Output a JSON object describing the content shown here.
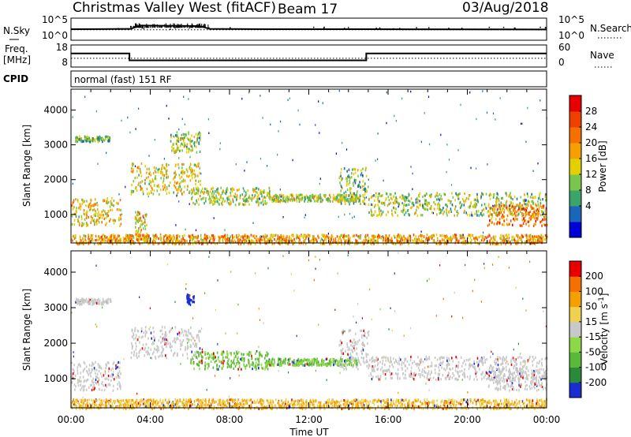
{
  "header": {
    "title": "Christmas Valley West (fitACF)",
    "beam": "Beam 17",
    "date": "03/Aug/2018"
  },
  "chart_data": [
    {
      "type": "line",
      "panel": "noise",
      "left_label": "N.Sky",
      "right_label": "N.Search",
      "left_ticks": [
        "10^5",
        "10^0"
      ],
      "right_ticks": [
        "10^5",
        "10^0"
      ],
      "x_range_hours": [
        0,
        24
      ],
      "series": [
        {
          "name": "N.Sky",
          "style": "solid",
          "x": [
            0,
            3,
            3.5,
            6.5,
            7,
            10,
            12,
            15,
            24
          ],
          "y": [
            2.5,
            2.6,
            3.8,
            3.6,
            2.6,
            2.5,
            2.5,
            2.5,
            2.4
          ]
        },
        {
          "name": "N.Search",
          "style": "dotted",
          "x": [
            0,
            24
          ],
          "y": [
            2.3,
            2.3
          ]
        }
      ]
    },
    {
      "type": "line",
      "panel": "frequency",
      "left_label": "Freq. [MHz]",
      "right_label": "Nave",
      "left_ticks": [
        "18",
        "8"
      ],
      "right_ticks": [
        "60",
        "0"
      ],
      "x_range_hours": [
        0,
        24
      ],
      "series": [
        {
          "name": "Freq.",
          "style": "solid",
          "x": [
            0,
            2.95,
            2.95,
            14.9,
            14.9,
            24
          ],
          "y": [
            14.5,
            14.5,
            10.5,
            10.5,
            14.5,
            14.5
          ]
        },
        {
          "name": "Nave",
          "style": "dotted",
          "x": [
            0,
            24
          ],
          "y": [
            22,
            22
          ]
        }
      ]
    },
    {
      "type": "heatmap",
      "panel": "cpid",
      "label": "CPID",
      "text": "normal (fast) 151 RF"
    },
    {
      "type": "heatmap",
      "panel": "power",
      "ylabel": "Slant Range [km]",
      "ylim": [
        180,
        4600
      ],
      "yticks": [
        1000,
        2000,
        3000,
        4000
      ],
      "colorbar_label": "Power [dB]",
      "colorbar_ticks": [
        "28",
        "24",
        "20",
        "16",
        "12",
        "8",
        "4"
      ],
      "colorbar_colors": [
        "#0000d8",
        "#1a66b8",
        "#3aa46a",
        "#7ac64c",
        "#e3d000",
        "#f5a000",
        "#f57000",
        "#f04000",
        "#e80000"
      ],
      "echo_regions": [
        {
          "t": [
            0.2,
            2.0
          ],
          "r": [
            3120,
            3280
          ],
          "level": 0.35
        },
        {
          "t": [
            0.0,
            2.5
          ],
          "r": [
            700,
            1500
          ],
          "level": 0.55
        },
        {
          "t": [
            3.0,
            6.5
          ],
          "r": [
            1600,
            2500
          ],
          "level": 0.5
        },
        {
          "t": [
            5.0,
            6.5
          ],
          "r": [
            2800,
            3400
          ],
          "level": 0.4
        },
        {
          "t": [
            6.0,
            10.0
          ],
          "r": [
            1300,
            1800
          ],
          "level": 0.45
        },
        {
          "t": [
            10.0,
            14.5
          ],
          "r": [
            1400,
            1600
          ],
          "level": 0.45
        },
        {
          "t": [
            13.5,
            15.0
          ],
          "r": [
            1300,
            2400
          ],
          "level": 0.35
        },
        {
          "t": [
            15.0,
            24.0
          ],
          "r": [
            1000,
            1650
          ],
          "level": 0.4
        },
        {
          "t": [
            21.0,
            24.0
          ],
          "r": [
            700,
            1300
          ],
          "level": 0.75
        },
        {
          "t": [
            3.2,
            3.8
          ],
          "r": [
            400,
            1100
          ],
          "level": 0.6
        },
        {
          "t": [
            0.0,
            24.0
          ],
          "r": [
            180,
            450
          ],
          "level": 0.65
        }
      ]
    },
    {
      "type": "heatmap",
      "panel": "velocity",
      "ylabel": "Slant Range [km]",
      "xlabel": "Time UT",
      "ylim": [
        180,
        4600
      ],
      "yticks": [
        1000,
        2000,
        3000,
        4000
      ],
      "xticks": [
        "00:00",
        "04:00",
        "08:00",
        "12:00",
        "16:00",
        "20:00",
        "00:00"
      ],
      "colorbar_label": "Velocity [m s^-1]",
      "colorbar_ticks": [
        "200",
        "100",
        "50",
        "15",
        "-15",
        "-50",
        "-100",
        "-200"
      ],
      "colorbar_colors": [
        "#1a2ed0",
        "#2a8a3a",
        "#5ab83a",
        "#8cd846",
        "#c8c8c8",
        "#f0d050",
        "#f5a000",
        "#f57000",
        "#e80000"
      ],
      "echo_regions": [
        {
          "t": [
            0.2,
            2.0
          ],
          "r": [
            3120,
            3280
          ],
          "vel": "grey"
        },
        {
          "t": [
            0.0,
            2.5
          ],
          "r": [
            700,
            1500
          ],
          "vel": "grey"
        },
        {
          "t": [
            3.0,
            6.5
          ],
          "r": [
            1600,
            2500
          ],
          "vel": "grey"
        },
        {
          "t": [
            5.8,
            6.2
          ],
          "r": [
            3100,
            3400
          ],
          "vel": "blue"
        },
        {
          "t": [
            6.0,
            10.0
          ],
          "r": [
            1300,
            1800
          ],
          "vel": "green"
        },
        {
          "t": [
            10.0,
            14.5
          ],
          "r": [
            1400,
            1600
          ],
          "vel": "green"
        },
        {
          "t": [
            13.5,
            15.0
          ],
          "r": [
            1300,
            2400
          ],
          "vel": "grey"
        },
        {
          "t": [
            15.0,
            24.0
          ],
          "r": [
            1000,
            1650
          ],
          "vel": "grey"
        },
        {
          "t": [
            21.0,
            24.0
          ],
          "r": [
            700,
            1300
          ],
          "vel": "grey"
        },
        {
          "t": [
            0.0,
            24.0
          ],
          "r": [
            180,
            450
          ],
          "vel": "orange"
        }
      ]
    }
  ]
}
